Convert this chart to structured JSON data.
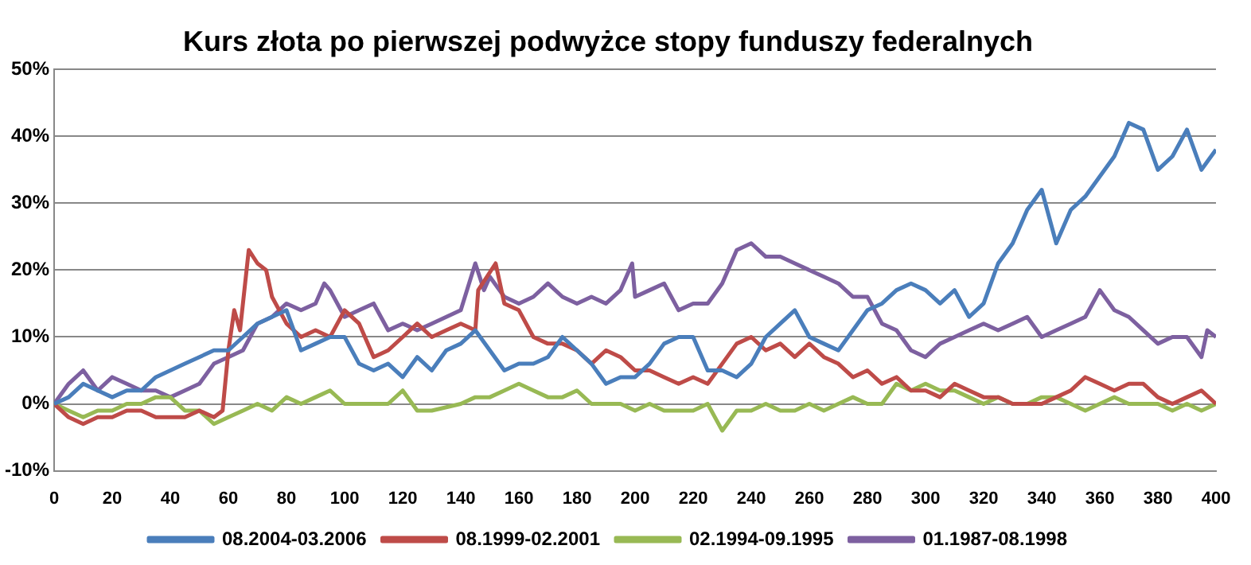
{
  "chart_data": {
    "type": "line",
    "title": "Kurs złota po pierwszej podwyżce stopy funduszy federalnych",
    "xlim": [
      0,
      400
    ],
    "xticks": [
      0,
      20,
      40,
      60,
      80,
      100,
      120,
      140,
      160,
      180,
      200,
      220,
      240,
      260,
      280,
      300,
      320,
      340,
      360,
      380,
      400
    ],
    "ylim": [
      -10,
      50
    ],
    "yticks": [
      {
        "value": -10,
        "label": "-10%"
      },
      {
        "value": 0,
        "label": "0%"
      },
      {
        "value": 10,
        "label": "10%"
      },
      {
        "value": 20,
        "label": "20%"
      },
      {
        "value": 30,
        "label": "30%"
      },
      {
        "value": 40,
        "label": "40%"
      },
      {
        "value": 50,
        "label": "50%"
      }
    ],
    "grid": "y",
    "legend": "bottom",
    "marker": "none",
    "line_style": "solid",
    "series": [
      {
        "name": "08.2004-03.2006",
        "color": "#4a7ebb",
        "x": [
          0,
          5,
          10,
          15,
          20,
          25,
          30,
          35,
          40,
          45,
          50,
          55,
          60,
          65,
          70,
          75,
          80,
          85,
          90,
          95,
          100,
          105,
          110,
          115,
          120,
          125,
          130,
          135,
          140,
          145,
          150,
          155,
          160,
          165,
          170,
          175,
          180,
          185,
          190,
          195,
          200,
          205,
          210,
          215,
          220,
          225,
          230,
          235,
          240,
          245,
          250,
          255,
          260,
          265,
          270,
          275,
          280,
          285,
          290,
          295,
          300,
          305,
          310,
          315,
          320,
          325,
          330,
          335,
          340,
          345,
          350,
          355,
          360,
          365,
          370,
          375,
          380,
          385,
          390,
          395,
          400
        ],
        "values": [
          0,
          1,
          3,
          2,
          1,
          2,
          2,
          4,
          5,
          6,
          7,
          8,
          8,
          10,
          12,
          13,
          14,
          8,
          9,
          10,
          10,
          6,
          5,
          6,
          4,
          7,
          5,
          8,
          9,
          11,
          8,
          5,
          6,
          6,
          7,
          10,
          8,
          6,
          3,
          4,
          4,
          6,
          9,
          10,
          10,
          5,
          5,
          4,
          6,
          10,
          12,
          14,
          10,
          9,
          8,
          11,
          14,
          15,
          17,
          18,
          17,
          15,
          17,
          13,
          15,
          21,
          24,
          29,
          32,
          24,
          29,
          31,
          34,
          37,
          42,
          41,
          35,
          37,
          41,
          35,
          38
        ]
      },
      {
        "name": "08.1999-02.2001",
        "color": "#be4b48",
        "x": [
          0,
          5,
          10,
          15,
          20,
          25,
          30,
          35,
          40,
          45,
          50,
          55,
          58,
          60,
          62,
          64,
          67,
          70,
          73,
          75,
          80,
          85,
          90,
          95,
          100,
          105,
          110,
          115,
          120,
          125,
          130,
          135,
          140,
          145,
          146,
          152,
          155,
          160,
          165,
          170,
          175,
          180,
          185,
          190,
          195,
          200,
          205,
          210,
          215,
          220,
          225,
          230,
          235,
          240,
          245,
          250,
          255,
          260,
          265,
          270,
          275,
          280,
          285,
          290,
          295,
          300,
          305,
          310,
          315,
          320,
          325,
          330,
          340,
          345,
          350,
          355,
          360,
          365,
          370,
          375,
          380,
          385,
          390,
          395,
          400
        ],
        "values": [
          0,
          -2,
          -3,
          -2,
          -2,
          -1,
          -1,
          -2,
          -2,
          -2,
          -1,
          -2,
          -1,
          8,
          14,
          11,
          23,
          21,
          20,
          16,
          12,
          10,
          11,
          10,
          14,
          12,
          7,
          8,
          10,
          12,
          10,
          11,
          12,
          11,
          17,
          21,
          15,
          14,
          10,
          9,
          9,
          8,
          6,
          8,
          7,
          5,
          5,
          4,
          3,
          4,
          3,
          6,
          9,
          10,
          8,
          9,
          7,
          9,
          7,
          6,
          4,
          5,
          3,
          4,
          2,
          2,
          1,
          3,
          2,
          1,
          1,
          0,
          0,
          1,
          2,
          4,
          3,
          2,
          3,
          3,
          1,
          0,
          1,
          2,
          0
        ]
      },
      {
        "name": "02.1994-09.1995",
        "color": "#98b954",
        "x": [
          0,
          5,
          10,
          15,
          20,
          25,
          30,
          35,
          40,
          45,
          50,
          55,
          60,
          65,
          70,
          75,
          80,
          85,
          90,
          95,
          100,
          110,
          115,
          120,
          125,
          130,
          140,
          145,
          150,
          155,
          160,
          165,
          170,
          175,
          180,
          185,
          190,
          195,
          200,
          205,
          210,
          215,
          220,
          225,
          230,
          235,
          240,
          245,
          250,
          255,
          260,
          265,
          270,
          275,
          280,
          285,
          290,
          295,
          300,
          305,
          310,
          315,
          320,
          325,
          330,
          335,
          340,
          345,
          350,
          355,
          360,
          365,
          370,
          375,
          380,
          385,
          390,
          395,
          400
        ],
        "values": [
          0,
          -1,
          -2,
          -1,
          -1,
          0,
          0,
          1,
          1,
          -1,
          -1,
          -3,
          -2,
          -1,
          0,
          -1,
          1,
          0,
          1,
          2,
          0,
          0,
          0,
          2,
          -1,
          -1,
          0,
          1,
          1,
          2,
          3,
          2,
          1,
          1,
          2,
          0,
          0,
          0,
          -1,
          0,
          -1,
          -1,
          -1,
          0,
          -4,
          -1,
          -1,
          0,
          -1,
          -1,
          0,
          -1,
          0,
          1,
          0,
          0,
          3,
          2,
          3,
          2,
          2,
          1,
          0,
          1,
          0,
          0,
          1,
          1,
          0,
          -1,
          0,
          1,
          0,
          0,
          0,
          -1,
          0,
          -1,
          0
        ]
      },
      {
        "name": "01.1987-08.1998",
        "color": "#7d60a0",
        "x": [
          0,
          5,
          10,
          15,
          20,
          25,
          30,
          35,
          40,
          45,
          50,
          55,
          60,
          65,
          70,
          75,
          80,
          85,
          90,
          93,
          95,
          100,
          105,
          110,
          115,
          120,
          125,
          130,
          135,
          140,
          145,
          148,
          150,
          155,
          160,
          165,
          170,
          175,
          180,
          185,
          190,
          195,
          199,
          200,
          205,
          210,
          215,
          220,
          225,
          230,
          235,
          240,
          245,
          250,
          255,
          260,
          265,
          270,
          275,
          280,
          285,
          290,
          295,
          300,
          305,
          310,
          315,
          320,
          325,
          330,
          335,
          340,
          345,
          350,
          355,
          360,
          365,
          370,
          375,
          380,
          385,
          390,
          395,
          397,
          400
        ],
        "values": [
          0,
          3,
          5,
          2,
          4,
          3,
          2,
          2,
          1,
          2,
          3,
          6,
          7,
          8,
          12,
          13,
          15,
          14,
          15,
          18,
          17,
          13,
          14,
          15,
          11,
          12,
          11,
          12,
          13,
          14,
          21,
          17,
          19,
          16,
          15,
          16,
          18,
          16,
          15,
          16,
          15,
          17,
          21,
          16,
          17,
          18,
          14,
          15,
          15,
          18,
          23,
          24,
          22,
          22,
          21,
          20,
          19,
          18,
          16,
          16,
          12,
          11,
          8,
          7,
          9,
          10,
          11,
          12,
          11,
          12,
          13,
          10,
          11,
          12,
          13,
          17,
          14,
          13,
          11,
          9,
          10,
          10,
          7,
          11,
          10
        ]
      }
    ]
  }
}
